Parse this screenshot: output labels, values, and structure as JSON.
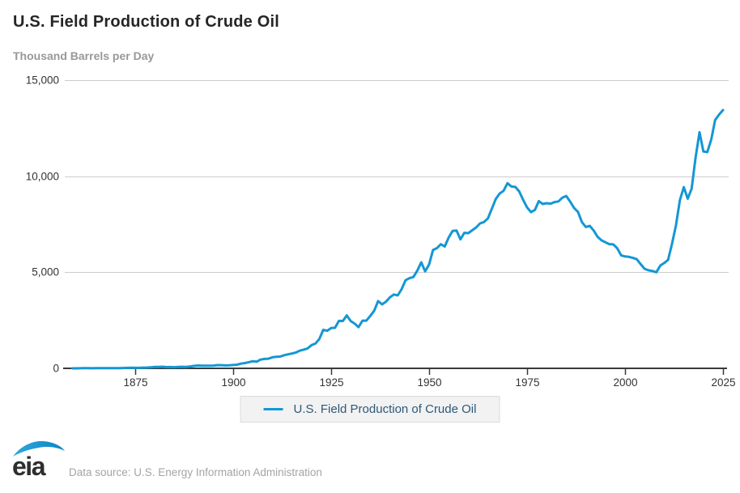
{
  "chart_data": {
    "type": "line",
    "title": "U.S. Field Production of Crude Oil",
    "ylabel": "Thousand Barrels per Day",
    "xlabel": "",
    "xlim": [
      1859,
      2025
    ],
    "ylim": [
      0,
      15000
    ],
    "grid": true,
    "legend_position": "bottom-center",
    "line_color": "#1497d4",
    "axis_color": "#3a3a3a",
    "grid_color": "#cccccc",
    "x_ticks": [
      1875,
      1900,
      1925,
      1950,
      1975,
      2000,
      2025
    ],
    "y_ticks": [
      0,
      5000,
      10000,
      15000
    ],
    "y_tick_labels": [
      "0",
      "5,000",
      "10,000",
      "15,000"
    ],
    "series": [
      {
        "name": "U.S. Field Production of Crude Oil",
        "x_start": 1859,
        "x_end": 2025,
        "x_step": 1,
        "values": [
          1,
          1,
          6,
          8,
          7,
          6,
          7,
          10,
          9,
          10,
          12,
          14,
          14,
          17,
          27,
          30,
          24,
          25,
          37,
          42,
          55,
          72,
          76,
          83,
          64,
          66,
          60,
          77,
          78,
          76,
          97,
          126,
          149,
          138,
          133,
          135,
          145,
          167,
          166,
          152,
          157,
          174,
          190,
          243,
          275,
          321,
          369,
          347,
          455,
          488,
          501,
          574,
          603,
          609,
          681,
          728,
          770,
          822,
          919,
          974,
          1037,
          1210,
          1290,
          1527,
          2007,
          1957,
          2092,
          2112,
          2470,
          2463,
          2757,
          2460,
          2332,
          2145,
          2481,
          2480,
          2730,
          3002,
          3500,
          3328,
          3467,
          3697,
          3842,
          3797,
          4125,
          4584,
          4695,
          4751,
          5088,
          5520,
          5046,
          5407,
          6158,
          6256,
          6458,
          6342,
          6807,
          7151,
          7170,
          6710,
          7054,
          7035,
          7183,
          7332,
          7542,
          7614,
          7804,
          8295,
          8810,
          9096,
          9238,
          9637,
          9463,
          9441,
          9208,
          8774,
          8375,
          8132,
          8245,
          8707,
          8552,
          8597,
          8572,
          8649,
          8688,
          8879,
          8971,
          8680,
          8349,
          8140,
          7613,
          7355,
          7417,
          7171,
          6847,
          6662,
          6560,
          6465,
          6452,
          6252,
          5881,
          5822,
          5801,
          5746,
          5681,
          5419,
          5178,
          5102,
          5064,
          5000,
          5353,
          5482,
          5645,
          6497,
          7441,
          8764,
          9431,
          8831,
          9352,
          10964,
          12289,
          11283,
          11254,
          11911,
          12927,
          13210,
          13440
        ]
      }
    ]
  },
  "footer": {
    "logo_text": "eia",
    "source": "Data source: U.S. Energy Information Administration"
  }
}
